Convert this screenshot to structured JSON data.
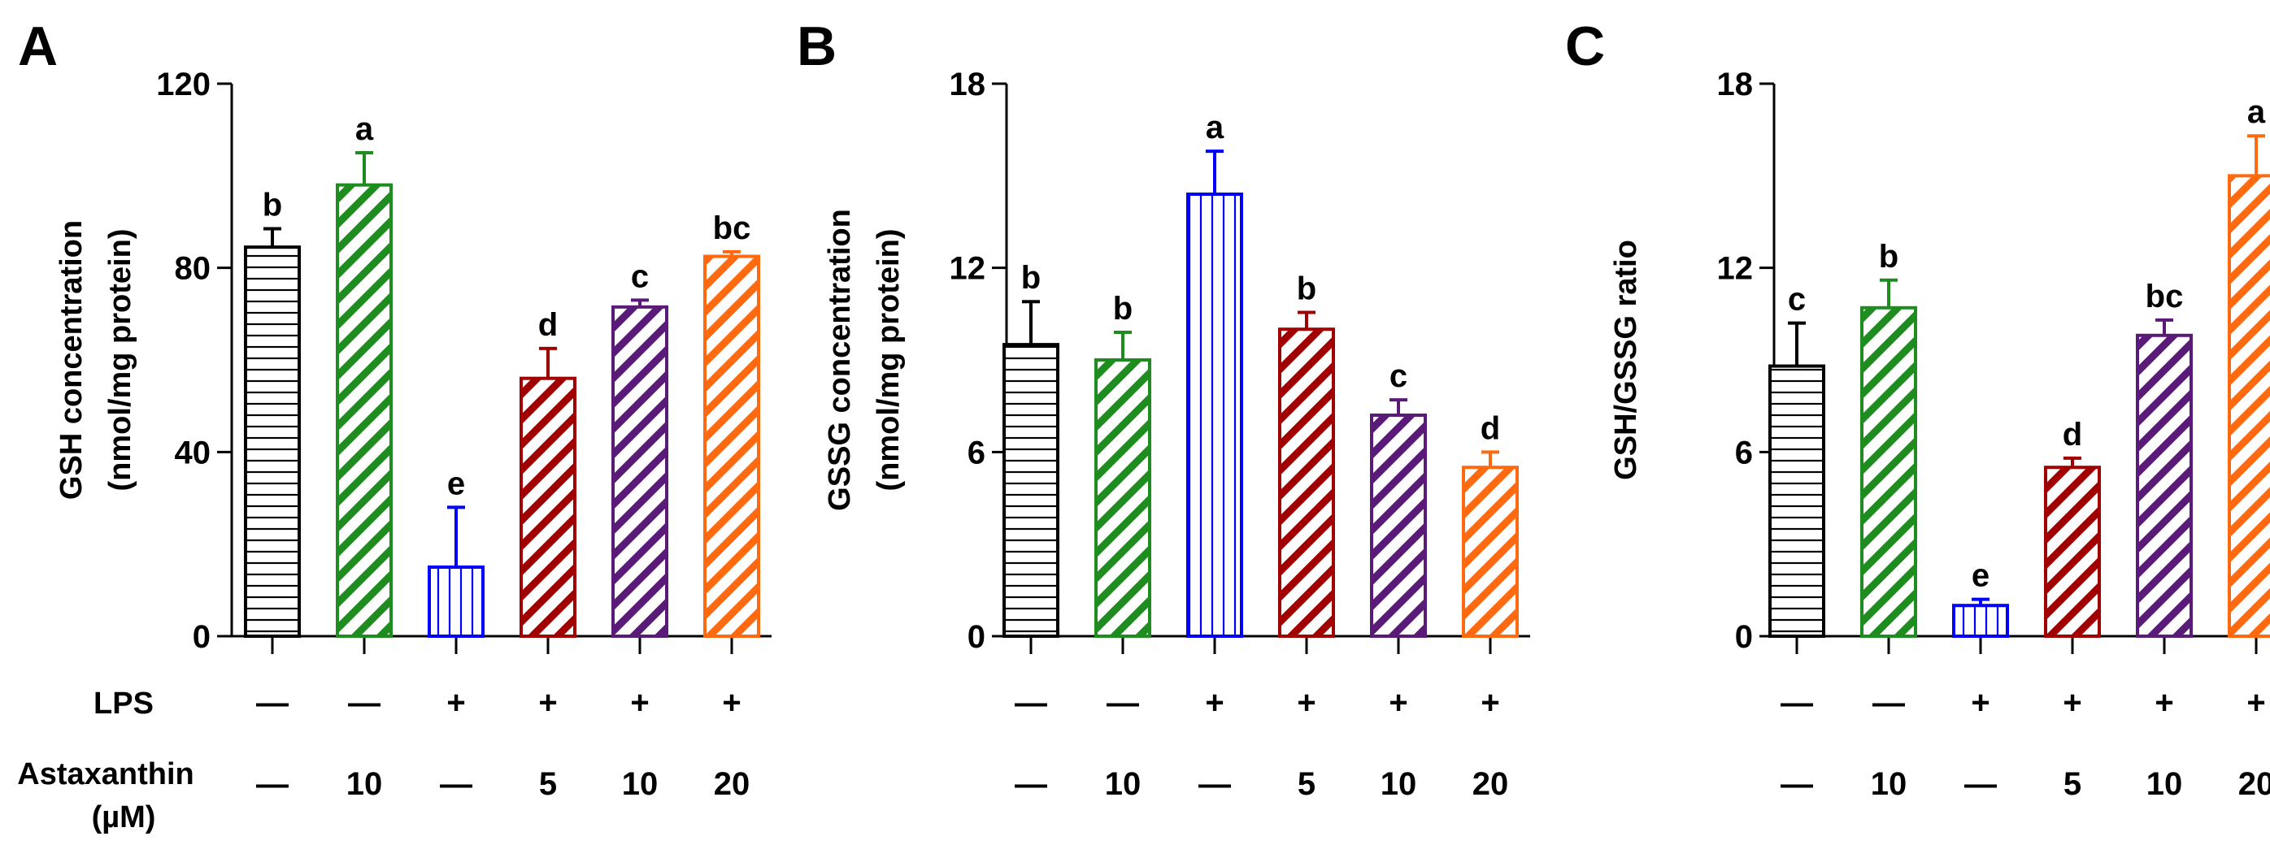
{
  "chart_data": [
    {
      "type": "bar",
      "panel": "A",
      "ylabel": "GSH concentration",
      "ylabel2": "(nmol/mg protein)",
      "ylim": [
        0,
        120
      ],
      "yticks": [
        "0",
        "40",
        "80",
        "120"
      ],
      "values": [
        84.5,
        98,
        15,
        56,
        71.5,
        82.5
      ],
      "errors": [
        4,
        7,
        13,
        6.5,
        1.5,
        1
      ],
      "sig": [
        "b",
        "a",
        "e",
        "d",
        "c",
        "bc"
      ]
    },
    {
      "type": "bar",
      "panel": "B",
      "ylabel": "GSSG concentration",
      "ylabel2": "(nmol/mg protein)",
      "ylim": [
        0,
        18
      ],
      "yticks": [
        "0",
        "6",
        "12",
        "18"
      ],
      "values": [
        9.5,
        9,
        14.4,
        10,
        7.2,
        5.5
      ],
      "errors": [
        1.4,
        0.9,
        1.4,
        0.55,
        0.5,
        0.5
      ],
      "sig": [
        "b",
        "b",
        "a",
        "b",
        "c",
        "d"
      ]
    },
    {
      "type": "bar",
      "panel": "C",
      "ylabel": "GSH/GSSG ratio",
      "ylabel2": "",
      "ylim": [
        0,
        18
      ],
      "yticks": [
        "0",
        "6",
        "12",
        "18"
      ],
      "values": [
        8.8,
        10.7,
        1,
        5.5,
        9.8,
        15
      ],
      "errors": [
        1.4,
        0.9,
        0.2,
        0.3,
        0.5,
        1.3
      ],
      "sig": [
        "c",
        "b",
        "e",
        "d",
        "bc",
        "a"
      ]
    }
  ],
  "groups": {
    "lps": [
      "—",
      "—",
      "+",
      "+",
      "+",
      "+"
    ],
    "astaxanthin": [
      "—",
      "10",
      "—",
      "5",
      "10",
      "20"
    ]
  },
  "row_labels": {
    "lps": "LPS",
    "astaxanthin": "Astaxanthin",
    "astaxanthin_unit": "(µM)"
  },
  "bar_styles": [
    {
      "color": "#000000",
      "pattern": "horizontal"
    },
    {
      "color": "#1e8c1e",
      "pattern": "diagonal"
    },
    {
      "color": "#0000ff",
      "pattern": "vertical"
    },
    {
      "color": "#a00000",
      "pattern": "diagonal"
    },
    {
      "color": "#5a1a78",
      "pattern": "diagonal"
    },
    {
      "color": "#ff6a10",
      "pattern": "diagonal"
    }
  ]
}
